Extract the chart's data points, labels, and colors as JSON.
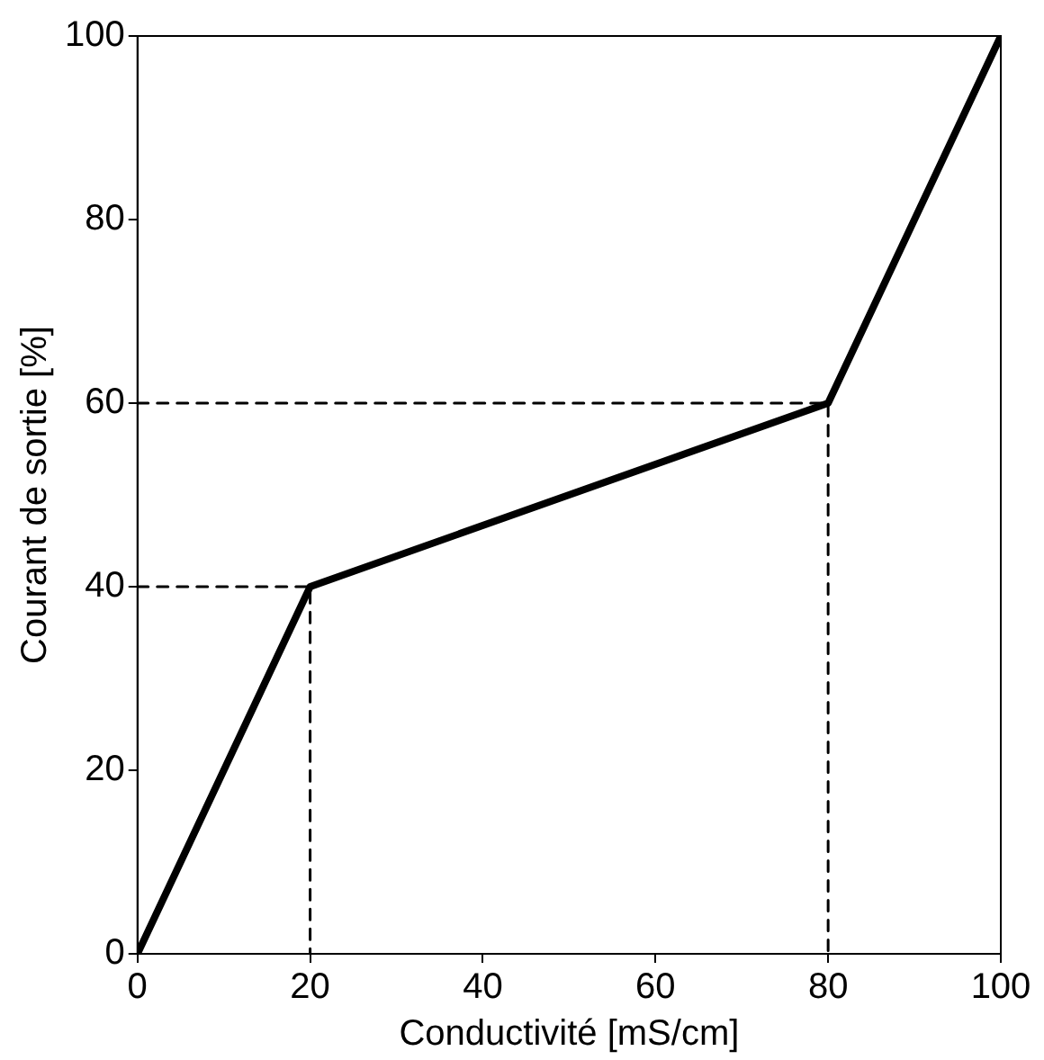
{
  "chart_data": {
    "type": "line",
    "xlabel": "Conductivité [mS/cm]",
    "ylabel": "Courant de sortie [%]",
    "series": [
      {
        "color": "#000000",
        "x": [
          0,
          20,
          80,
          100
        ],
        "values": [
          0,
          40,
          60,
          100
        ],
        "line_style": "solid"
      },
      {
        "color": "#000000",
        "x": [
          0,
          20,
          20
        ],
        "values": [
          40,
          40,
          0
        ],
        "line_style": "dashed"
      },
      {
        "color": "#000000",
        "x": [
          0,
          80,
          80
        ],
        "values": [
          60,
          60,
          0
        ],
        "line_style": "dashed"
      }
    ],
    "xlim": [
      0,
      100
    ],
    "xticks": [
      0,
      20,
      40,
      60,
      80,
      100
    ],
    "ylim": [
      0,
      100
    ],
    "yticks": [
      0,
      20,
      40,
      60,
      80,
      100
    ],
    "grid": false,
    "legend": false,
    "marker": "none"
  }
}
